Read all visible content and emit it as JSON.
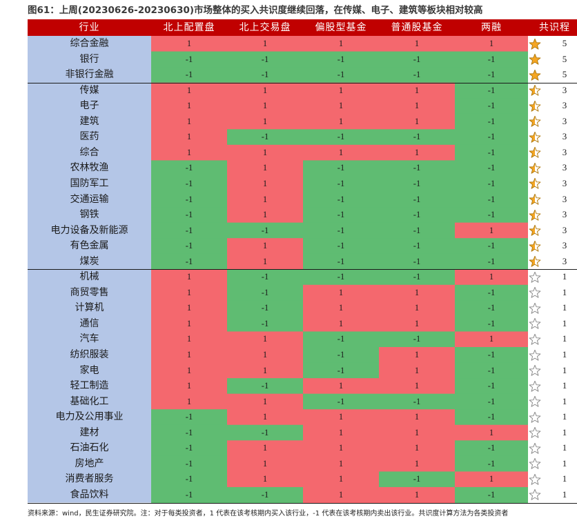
{
  "title": "图61：上周(20230626-20230630)市场整体的买入共识度继续回落，在传媒、电子、建筑等板块相对较高",
  "footnote": "资料来源：wind，民生证券研究院。注：对于每类投资者，1 代表在该考核期内买入该行业，-1 代表在该考核期内卖出该行业。共识度计算方法为各类投资者",
  "colors": {
    "header_bg": "#c00000",
    "buy": "#f4686e",
    "sell": "#5fbc72",
    "industry_bg": "#b4c6e7",
    "star_fill": "#f5a623"
  },
  "chart_data": {
    "type": "table",
    "columns": [
      "行业",
      "北上配置盘",
      "北上交易盘",
      "偏股型基金",
      "普通股基金",
      "两融",
      "共识程"
    ],
    "rows": [
      {
        "industry": "综合金融",
        "values": [
          1,
          1,
          1,
          1,
          1
        ],
        "consensus": 5,
        "stars": "full"
      },
      {
        "industry": "银行",
        "values": [
          -1,
          -1,
          -1,
          -1,
          -1
        ],
        "consensus": 5,
        "stars": "full"
      },
      {
        "industry": "非银行金融",
        "values": [
          -1,
          -1,
          -1,
          -1,
          -1
        ],
        "consensus": 5,
        "stars": "full"
      },
      {
        "industry": "传媒",
        "values": [
          1,
          1,
          1,
          1,
          -1
        ],
        "consensus": 3,
        "stars": "half"
      },
      {
        "industry": "电子",
        "values": [
          1,
          1,
          1,
          1,
          -1
        ],
        "consensus": 3,
        "stars": "half"
      },
      {
        "industry": "建筑",
        "values": [
          1,
          1,
          1,
          1,
          -1
        ],
        "consensus": 3,
        "stars": "half"
      },
      {
        "industry": "医药",
        "values": [
          1,
          -1,
          -1,
          -1,
          -1
        ],
        "consensus": 3,
        "stars": "half"
      },
      {
        "industry": "综合",
        "values": [
          1,
          1,
          1,
          1,
          -1
        ],
        "consensus": 3,
        "stars": "half"
      },
      {
        "industry": "农林牧渔",
        "values": [
          -1,
          1,
          -1,
          -1,
          -1
        ],
        "consensus": 3,
        "stars": "half"
      },
      {
        "industry": "国防军工",
        "values": [
          -1,
          1,
          -1,
          -1,
          -1
        ],
        "consensus": 3,
        "stars": "half"
      },
      {
        "industry": "交通运输",
        "values": [
          -1,
          1,
          -1,
          -1,
          -1
        ],
        "consensus": 3,
        "stars": "half"
      },
      {
        "industry": "钢铁",
        "values": [
          -1,
          1,
          -1,
          -1,
          -1
        ],
        "consensus": 3,
        "stars": "half"
      },
      {
        "industry": "电力设备及新能源",
        "values": [
          -1,
          -1,
          -1,
          -1,
          1
        ],
        "consensus": 3,
        "stars": "half"
      },
      {
        "industry": "有色金属",
        "values": [
          -1,
          1,
          -1,
          -1,
          -1
        ],
        "consensus": 3,
        "stars": "half"
      },
      {
        "industry": "煤炭",
        "values": [
          -1,
          1,
          -1,
          -1,
          -1
        ],
        "consensus": 3,
        "stars": "half"
      },
      {
        "industry": "机械",
        "values": [
          1,
          -1,
          -1,
          -1,
          1
        ],
        "consensus": 1,
        "stars": "empty"
      },
      {
        "industry": "商贸零售",
        "values": [
          1,
          -1,
          1,
          1,
          -1
        ],
        "consensus": 1,
        "stars": "empty"
      },
      {
        "industry": "计算机",
        "values": [
          1,
          -1,
          1,
          1,
          -1
        ],
        "consensus": 1,
        "stars": "empty"
      },
      {
        "industry": "通信",
        "values": [
          1,
          -1,
          1,
          1,
          -1
        ],
        "consensus": 1,
        "stars": "empty"
      },
      {
        "industry": "汽车",
        "values": [
          1,
          1,
          -1,
          -1,
          1
        ],
        "consensus": 1,
        "stars": "empty"
      },
      {
        "industry": "纺织服装",
        "values": [
          1,
          1,
          -1,
          1,
          -1
        ],
        "consensus": 1,
        "stars": "empty"
      },
      {
        "industry": "家电",
        "values": [
          1,
          1,
          -1,
          1,
          -1
        ],
        "consensus": 1,
        "stars": "empty"
      },
      {
        "industry": "轻工制造",
        "values": [
          1,
          -1,
          1,
          1,
          -1
        ],
        "consensus": 1,
        "stars": "empty"
      },
      {
        "industry": "基础化工",
        "values": [
          1,
          1,
          -1,
          -1,
          -1
        ],
        "consensus": 1,
        "stars": "empty"
      },
      {
        "industry": "电力及公用事业",
        "values": [
          -1,
          1,
          1,
          1,
          -1
        ],
        "consensus": 1,
        "stars": "empty"
      },
      {
        "industry": "建材",
        "values": [
          -1,
          -1,
          1,
          1,
          1
        ],
        "consensus": 1,
        "stars": "empty"
      },
      {
        "industry": "石油石化",
        "values": [
          -1,
          1,
          1,
          1,
          -1
        ],
        "consensus": 1,
        "stars": "empty"
      },
      {
        "industry": "房地产",
        "values": [
          -1,
          1,
          1,
          1,
          -1
        ],
        "consensus": 1,
        "stars": "empty"
      },
      {
        "industry": "消费者服务",
        "values": [
          -1,
          1,
          1,
          -1,
          1
        ],
        "consensus": 1,
        "stars": "empty"
      },
      {
        "industry": "食品饮料",
        "values": [
          -1,
          -1,
          1,
          1,
          -1
        ],
        "consensus": 1,
        "stars": "empty"
      }
    ]
  }
}
